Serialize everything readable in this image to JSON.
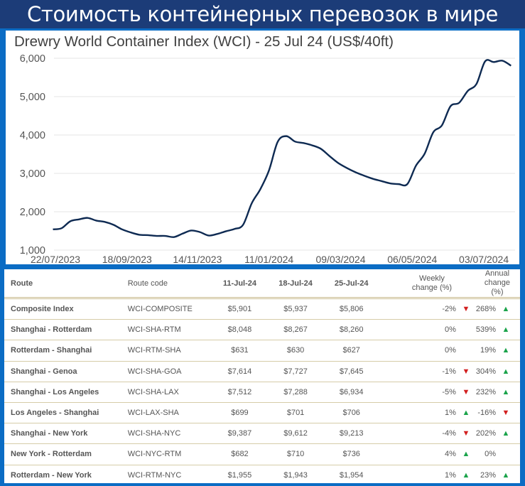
{
  "page_title": "Стоимость контейнерных перевозок в мире",
  "colors": {
    "frame": "#0b6cc4",
    "title_bar": "#1c3c78",
    "line": "#0e2a52",
    "up": "#1aa34a",
    "down": "#d21f1f"
  },
  "chart_data": {
    "type": "line",
    "title": "Drewry World Container Index (WCI) - 25 Jul 24 (US$/40ft)",
    "xlabel": "",
    "ylabel": "",
    "ylim": [
      1000,
      6000
    ],
    "yticks": [
      "1,000",
      "2,000",
      "3,000",
      "4,000",
      "5,000",
      "6,000"
    ],
    "xticks": [
      "22/07/2023",
      "18/09/2023",
      "14/11/2023",
      "11/01/2024",
      "09/03/2024",
      "06/05/2024",
      "03/07/2024"
    ],
    "grid": true,
    "x_start": "2023-07-20",
    "x_step_days": 7,
    "values": [
      1540,
      1570,
      1750,
      1800,
      1840,
      1770,
      1735,
      1660,
      1540,
      1460,
      1400,
      1390,
      1370,
      1370,
      1340,
      1430,
      1510,
      1470,
      1380,
      1420,
      1490,
      1550,
      1660,
      2220,
      2590,
      3080,
      3820,
      3970,
      3830,
      3790,
      3730,
      3640,
      3450,
      3270,
      3140,
      3030,
      2940,
      2860,
      2800,
      2740,
      2720,
      2720,
      3200,
      3510,
      4070,
      4250,
      4750,
      4840,
      5150,
      5330,
      5920,
      5901,
      5937,
      5806
    ]
  },
  "table": {
    "headers": {
      "route": "Route",
      "code": "Route code",
      "d1": "11-Jul-24",
      "d2": "18-Jul-24",
      "d3": "25-Jul-24",
      "weekly1": "Weekly",
      "weekly2": "change (%)",
      "annual1": "Annual",
      "annual2": "change (%)"
    },
    "rows": [
      {
        "route": "Composite Index",
        "code": "WCI-COMPOSITE",
        "d1": "$5,901",
        "d2": "$5,937",
        "d3": "$5,806",
        "weekly": "-2%",
        "weekly_dir": "down",
        "annual": "268%",
        "annual_dir": "up"
      },
      {
        "route": "Shanghai - Rotterdam",
        "code": "WCI-SHA-RTM",
        "d1": "$8,048",
        "d2": "$8,267",
        "d3": "$8,260",
        "weekly": "0%",
        "weekly_dir": "",
        "annual": "539%",
        "annual_dir": "up"
      },
      {
        "route": "Rotterdam - Shanghai",
        "code": "WCI-RTM-SHA",
        "d1": "$631",
        "d2": "$630",
        "d3": "$627",
        "weekly": "0%",
        "weekly_dir": "",
        "annual": "19%",
        "annual_dir": "up"
      },
      {
        "route": "Shanghai - Genoa",
        "code": "WCI-SHA-GOA",
        "d1": "$7,614",
        "d2": "$7,727",
        "d3": "$7,645",
        "weekly": "-1%",
        "weekly_dir": "down",
        "annual": "304%",
        "annual_dir": "up"
      },
      {
        "route": "Shanghai - Los Angeles",
        "code": "WCI-SHA-LAX",
        "d1": "$7,512",
        "d2": "$7,288",
        "d3": "$6,934",
        "weekly": "-5%",
        "weekly_dir": "down",
        "annual": "232%",
        "annual_dir": "up"
      },
      {
        "route": "Los Angeles - Shanghai",
        "code": "WCI-LAX-SHA",
        "d1": "$699",
        "d2": "$701",
        "d3": "$706",
        "weekly": "1%",
        "weekly_dir": "up",
        "annual": "-16%",
        "annual_dir": "down"
      },
      {
        "route": "Shanghai - New York",
        "code": "WCI-SHA-NYC",
        "d1": "$9,387",
        "d2": "$9,612",
        "d3": "$9,213",
        "weekly": "-4%",
        "weekly_dir": "down",
        "annual": "202%",
        "annual_dir": "up"
      },
      {
        "route": "New York - Rotterdam",
        "code": "WCI-NYC-RTM",
        "d1": "$682",
        "d2": "$710",
        "d3": "$736",
        "weekly": "4%",
        "weekly_dir": "up",
        "annual": "0%",
        "annual_dir": ""
      },
      {
        "route": "Rotterdam - New York",
        "code": "WCI-RTM-NYC",
        "d1": "$1,955",
        "d2": "$1,943",
        "d3": "$1,954",
        "weekly": "1%",
        "weekly_dir": "up",
        "annual": "23%",
        "annual_dir": "up"
      }
    ]
  }
}
